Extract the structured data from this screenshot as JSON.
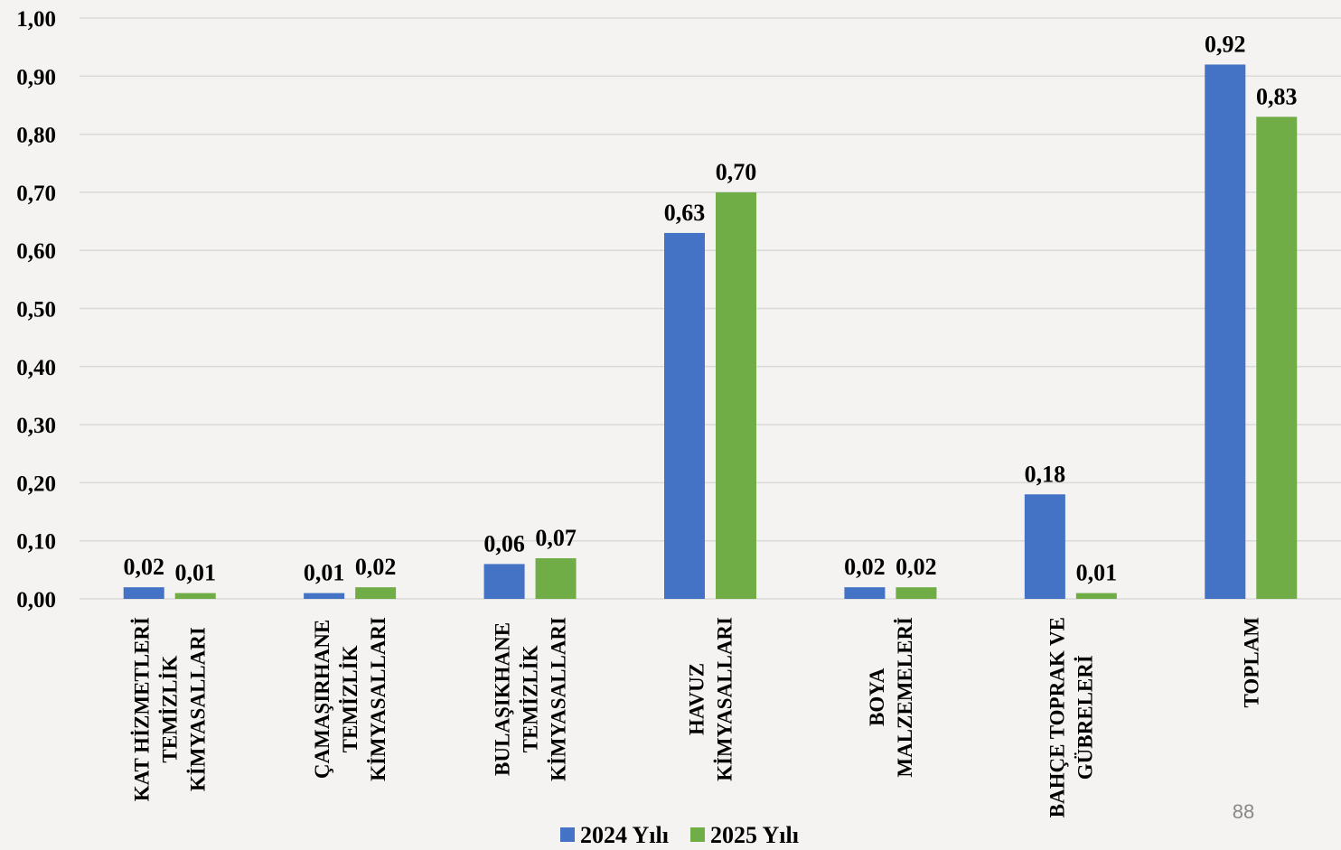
{
  "chart_data": {
    "type": "bar",
    "categories": [
      "KAT HİZMETLERİ\nTEMİZLİK\nKİMYASALLARI",
      "ÇAMAŞIRHANE\nTEMİZLİK\nKİMYASALLARI",
      "BULAŞIKHANE\nTEMİZLİK\nKİMYASALLARI",
      "HAVUZ\nKİMYASALLARI",
      "BOYA\nMALZEMELERİ",
      "BAHÇE TOPRAK VE\nGÜBRELERİ",
      "TOPLAM"
    ],
    "series": [
      {
        "name": "2024 Yılı",
        "color": "#4472c4",
        "values": [
          0.02,
          0.01,
          0.06,
          0.63,
          0.02,
          0.18,
          0.92
        ],
        "value_labels": [
          "0,02",
          "0,01",
          "0,06",
          "0,63",
          "0,02",
          "0,18",
          "0,92"
        ]
      },
      {
        "name": "2025 Yılı",
        "color": "#70ad47",
        "values": [
          0.01,
          0.02,
          0.07,
          0.7,
          0.02,
          0.01,
          0.83
        ],
        "value_labels": [
          "0,01",
          "0,02",
          "0,07",
          "0,70",
          "0,02",
          "0,01",
          "0,83"
        ]
      }
    ],
    "ylim": [
      0,
      1
    ],
    "yticks": [
      {
        "value": 0,
        "label": "0,00"
      },
      {
        "value": 0.1,
        "label": "0,10"
      },
      {
        "value": 0.2,
        "label": "0,20"
      },
      {
        "value": 0.3,
        "label": "0,30"
      },
      {
        "value": 0.4,
        "label": "0,40"
      },
      {
        "value": 0.5,
        "label": "0,50"
      },
      {
        "value": 0.6,
        "label": "0,60"
      },
      {
        "value": 0.7,
        "label": "0,70"
      },
      {
        "value": 0.8,
        "label": "0,80"
      },
      {
        "value": 0.9,
        "label": "0,90"
      },
      {
        "value": 1,
        "label": "1,00"
      }
    ],
    "grid": true,
    "legend": "bottom"
  },
  "page_number": "88"
}
